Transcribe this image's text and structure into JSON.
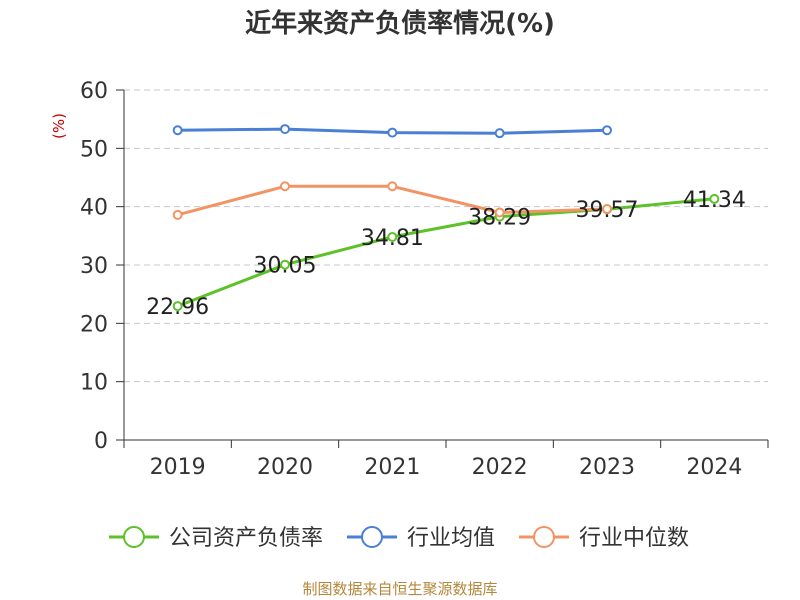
{
  "chart_data": {
    "type": "line",
    "title": "近年来资产负债率情况(%)",
    "y_unit": "(%)",
    "categories": [
      "2019",
      "2020",
      "2021",
      "2022",
      "2023",
      "2024"
    ],
    "ylim": [
      0,
      60
    ],
    "y_ticks": [
      0,
      10,
      20,
      30,
      40,
      50,
      60
    ],
    "grid": true,
    "legend_position": "bottom",
    "series": [
      {
        "name": "公司资产负债率",
        "color": "#5dc12a",
        "values": [
          22.96,
          30.05,
          34.81,
          38.29,
          39.57,
          41.34
        ],
        "labels": [
          "22.96",
          "30.05",
          "34.81",
          "38.29",
          "39.57",
          "41.34"
        ]
      },
      {
        "name": "行业均值",
        "color": "#4a7fd6",
        "values": [
          53.1,
          53.3,
          52.7,
          52.6,
          53.1,
          null
        ]
      },
      {
        "name": "行业中位数",
        "color": "#f39363",
        "values": [
          38.6,
          43.5,
          43.5,
          39.0,
          39.6,
          null
        ]
      }
    ],
    "source": "制图数据来自恒生聚源数据库"
  }
}
